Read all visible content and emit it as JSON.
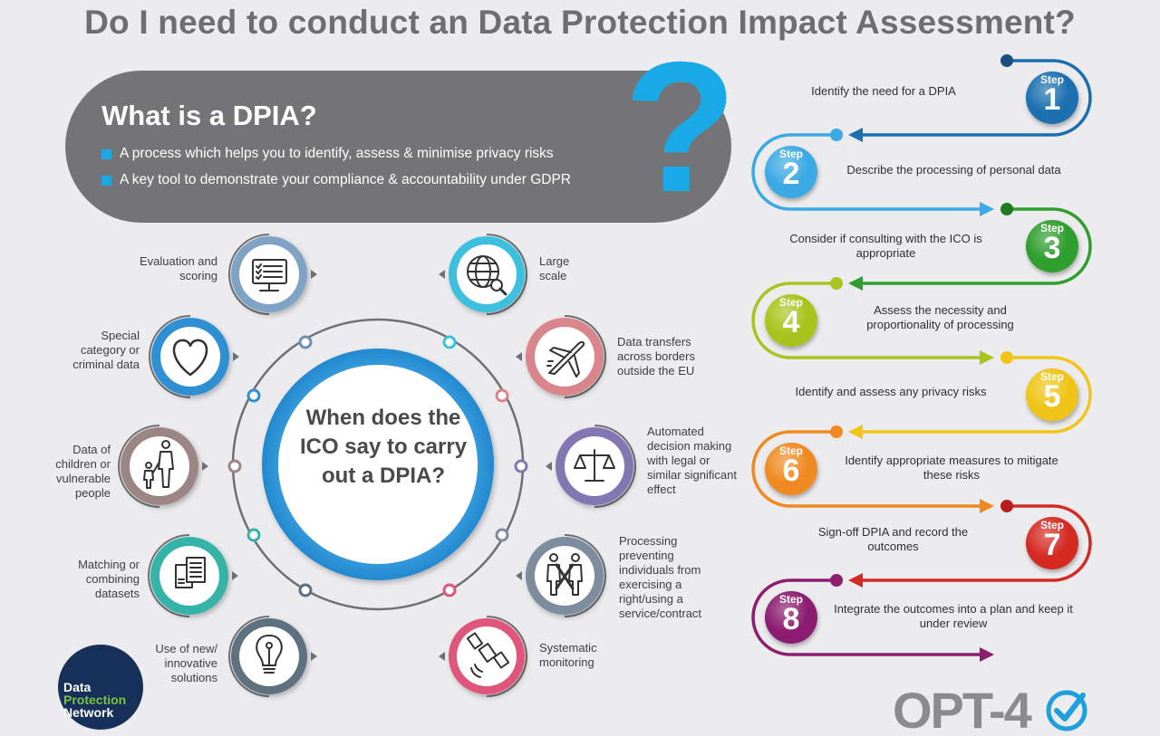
{
  "title": "Do I need to conduct an Data Protection Impact Assessment?",
  "dpia": {
    "heading": "What is a DPIA?",
    "bullets": [
      "A process which helps you to identify, assess & minimise privacy risks",
      "A key tool to demonstrate your compliance & accountability under GDPR"
    ],
    "question_mark": "?"
  },
  "center": {
    "text": "When does the ICO say to carry out a DPIA?"
  },
  "criteria_left": [
    {
      "label": "Evaluation and scoring",
      "icon": "monitor-checklist-icon",
      "color": "#7fa3c4"
    },
    {
      "label": "Special category or criminal data",
      "icon": "heart-icon",
      "color": "#2f8fd3"
    },
    {
      "label": "Data of children or vulnerable people",
      "icon": "family-icon",
      "color": "#9c8585"
    },
    {
      "label": "Matching or combining datasets",
      "icon": "documents-icon",
      "color": "#36b3a9"
    },
    {
      "label": "Use of new/ innovative solutions",
      "icon": "lightbulb-icon",
      "color": "#5f6f7f"
    }
  ],
  "criteria_right": [
    {
      "label": "Large scale",
      "icon": "globe-icon",
      "color": "#3cc0dd"
    },
    {
      "label": "Data transfers across borders outside the EU",
      "icon": "airplane-icon",
      "color": "#d8858b"
    },
    {
      "label": "Automated decision making with legal or similar significant effect",
      "icon": "scales-icon",
      "color": "#8276b3"
    },
    {
      "label": "Processing preventing individuals from exercising a right/using a service/contract",
      "icon": "blocked-people-icon",
      "color": "#7d8d9d"
    },
    {
      "label": "Systematic monitoring",
      "icon": "satellite-icon",
      "color": "#e0557c"
    }
  ],
  "steps": [
    {
      "word": "Step",
      "num": "1",
      "text": "Identify the need for a DPIA",
      "color": "#1b6fb0"
    },
    {
      "word": "Step",
      "num": "2",
      "text": "Describe the processing of personal data",
      "color": "#3ba9e3"
    },
    {
      "word": "Step",
      "num": "3",
      "text": "Consider if consulting with the ICO is appropriate",
      "color": "#2f9e2f"
    },
    {
      "word": "Step",
      "num": "4",
      "text": "Assess the necessity and proportionality of processing",
      "color": "#a8c41e"
    },
    {
      "word": "Step",
      "num": "5",
      "text": "Identify and assess any privacy risks",
      "color": "#f0c418"
    },
    {
      "word": "Step",
      "num": "6",
      "text": "Identify appropriate measures to mitigate these risks",
      "color": "#ef8a22"
    },
    {
      "word": "Step",
      "num": "7",
      "text": "Sign-off DPIA and record the outcomes",
      "color": "#d42a24"
    },
    {
      "word": "Step",
      "num": "8",
      "text": "Integrate the outcomes into a plan and keep it under review",
      "color": "#8c1d6f"
    }
  ],
  "logos": {
    "dpn": [
      "Data",
      "Protection",
      "Network"
    ],
    "opt4": "OPT-4"
  }
}
